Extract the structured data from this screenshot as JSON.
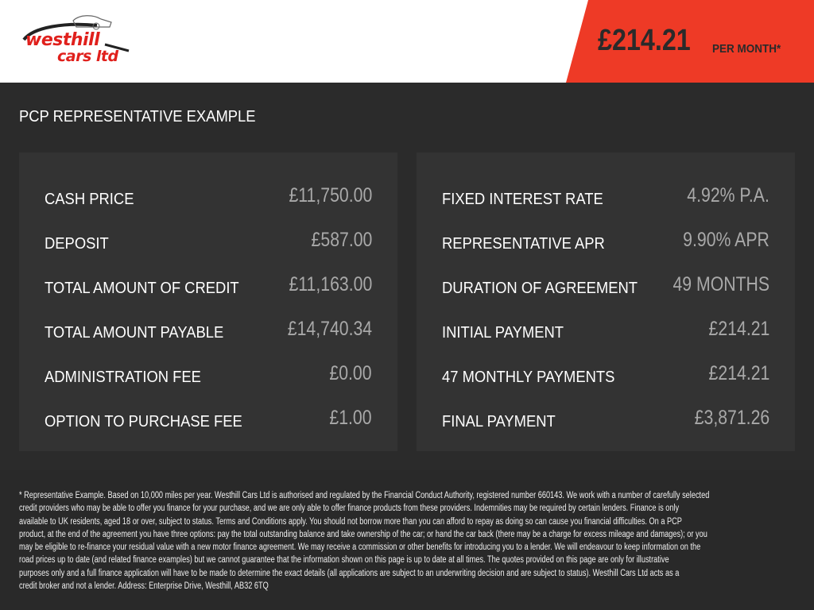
{
  "brand": {
    "logo_text": "westhill cars ltd",
    "logo_line1": "westhill",
    "logo_line2": "cars ltd"
  },
  "header": {
    "price": "£214.21",
    "per_month": "PER MONTH*",
    "accent": "#ee3a26"
  },
  "title": "PCP REPRESENTATIVE EXAMPLE",
  "left_panel": [
    {
      "label": "CASH PRICE",
      "value": "£11,750.00"
    },
    {
      "label": "DEPOSIT",
      "value": "£587.00"
    },
    {
      "label": "TOTAL AMOUNT OF CREDIT",
      "value": "£11,163.00"
    },
    {
      "label": "TOTAL AMOUNT PAYABLE",
      "value": "£14,740.34"
    },
    {
      "label": "ADMINISTRATION FEE",
      "value": "£0.00"
    },
    {
      "label": "OPTION TO PURCHASE FEE",
      "value": "£1.00"
    }
  ],
  "right_panel": [
    {
      "label": "FIXED INTEREST RATE",
      "value": "4.92% P.A."
    },
    {
      "label": "REPRESENTATIVE APR",
      "value": "9.90% APR"
    },
    {
      "label": "DURATION OF AGREEMENT",
      "value": "49 MONTHS"
    },
    {
      "label": "INITIAL PAYMENT",
      "value": "£214.21"
    },
    {
      "label": "47 MONTHLY PAYMENTS",
      "value": "£214.21"
    },
    {
      "label": "FINAL PAYMENT",
      "value": "£3,871.26"
    }
  ],
  "disclaimer": [
    "* Representative Example. Based on 10,000 miles per year. Westhill Cars Ltd is authorised and regulated by the Financial Conduct Authority, registered number 660143. We work with a number of carefully selected",
    "credit providers who may be able to offer you finance for your purchase, and we are only able to offer finance products from these providers. Indemnities may be required by certain lenders. Finance is only",
    "available to UK residents, aged 18 or over, subject to status. Terms and Conditions apply. You should not borrow more than you can afford to repay as doing so can cause you financial difficulties. On a PCP",
    "product, at the end of the agreement you have three options: pay the total outstanding balance and take ownership of the car; or hand the car back (there may be a charge for excess mileage and damages); or you",
    "may be eligible to re-finance your residual value with a new motor finance agreement. We may receive a commission or other benefits for introducing you to a lender. We will endeavour to keep information on the",
    "road prices up to date (and related finance examples) but we cannot guarantee that the information shown on this page is up to date at all times. The quotes provided on this page are only for illustrative",
    "purposes only and a full finance application will have to be made to determine the exact details (all applications are subject to an underwriting decision and are subject to status). Westhill Cars Ltd acts as a",
    "credit broker and not a lender. Address: Enterprise Drive, Westhill, AB32 6TQ"
  ]
}
